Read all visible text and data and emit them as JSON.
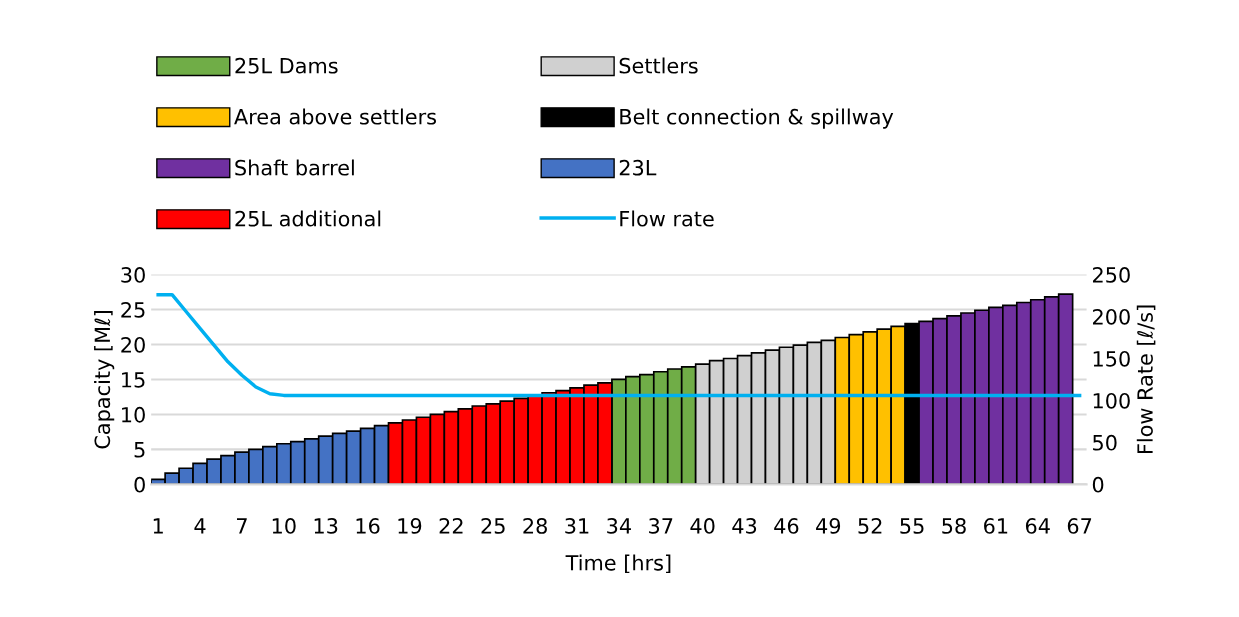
{
  "chart_data": {
    "type": "bar",
    "xlabel": "Time [hrs]",
    "ylabel": "Capacity [Mℓ]",
    "y2label": "Flow Rate [ℓ/s]",
    "categories": [
      "1",
      null,
      null,
      "4",
      null,
      null,
      "7",
      null,
      null,
      "10",
      null,
      null,
      "13",
      null,
      null,
      "16",
      null,
      null,
      "19",
      null,
      null,
      "22",
      null,
      null,
      "25",
      null,
      null,
      "28",
      null,
      null,
      "31",
      null,
      null,
      "34",
      null,
      null,
      "37",
      null,
      null,
      "40",
      null,
      null,
      "43",
      null,
      null,
      "46",
      null,
      null,
      "49",
      null,
      null,
      "52",
      null,
      null,
      "55",
      null,
      null,
      "58",
      null,
      null,
      "61",
      null,
      null,
      "64",
      null,
      null,
      "67"
    ],
    "series": [
      {
        "name": "25L Dams",
        "color": "#70ad47",
        "values": [
          null,
          null,
          null,
          null,
          null,
          null,
          null,
          null,
          null,
          null,
          null,
          null,
          null,
          null,
          null,
          null,
          null,
          null,
          null,
          null,
          null,
          null,
          null,
          null,
          null,
          null,
          null,
          null,
          null,
          null,
          null,
          null,
          null,
          15.0,
          15.4,
          15.7,
          16.1,
          16.5,
          16.8,
          null,
          null,
          null,
          null,
          null,
          null,
          null,
          null,
          null,
          null,
          null,
          null,
          null,
          null,
          null,
          null,
          null,
          null,
          null,
          null,
          null,
          null,
          null,
          null,
          null,
          null,
          null,
          null
        ]
      },
      {
        "name": "Settlers",
        "color": "#d0d0d0",
        "values": [
          null,
          null,
          null,
          null,
          null,
          null,
          null,
          null,
          null,
          null,
          null,
          null,
          null,
          null,
          null,
          null,
          null,
          null,
          null,
          null,
          null,
          null,
          null,
          null,
          null,
          null,
          null,
          null,
          null,
          null,
          null,
          null,
          null,
          null,
          null,
          null,
          null,
          null,
          null,
          17.2,
          17.7,
          18.0,
          18.4,
          18.8,
          19.2,
          19.6,
          19.9,
          20.3,
          20.6,
          null,
          null,
          null,
          null,
          null,
          null,
          null,
          null,
          null,
          null,
          null,
          null,
          null,
          null,
          null,
          null,
          null,
          null
        ]
      },
      {
        "name": "Area above settlers",
        "color": "#ffc000",
        "values": [
          null,
          null,
          null,
          null,
          null,
          null,
          null,
          null,
          null,
          null,
          null,
          null,
          null,
          null,
          null,
          null,
          null,
          null,
          null,
          null,
          null,
          null,
          null,
          null,
          null,
          null,
          null,
          null,
          null,
          null,
          null,
          null,
          null,
          null,
          null,
          null,
          null,
          null,
          null,
          null,
          null,
          null,
          null,
          null,
          null,
          null,
          null,
          null,
          null,
          21.0,
          21.4,
          21.8,
          22.2,
          22.6,
          null,
          null,
          null,
          null,
          null,
          null,
          null,
          null,
          null,
          null,
          null,
          null,
          null
        ]
      },
      {
        "name": "Belt connection & spillway",
        "color": "#000000",
        "values": [
          null,
          null,
          null,
          null,
          null,
          null,
          null,
          null,
          null,
          null,
          null,
          null,
          null,
          null,
          null,
          null,
          null,
          null,
          null,
          null,
          null,
          null,
          null,
          null,
          null,
          null,
          null,
          null,
          null,
          null,
          null,
          null,
          null,
          null,
          null,
          null,
          null,
          null,
          null,
          null,
          null,
          null,
          null,
          null,
          null,
          null,
          null,
          null,
          null,
          null,
          null,
          null,
          null,
          null,
          23.0,
          null,
          null,
          null,
          null,
          null,
          null,
          null,
          null,
          null,
          null,
          null,
          null
        ]
      },
      {
        "name": "Shaft barrel",
        "color": "#7030a0",
        "values": [
          null,
          null,
          null,
          null,
          null,
          null,
          null,
          null,
          null,
          null,
          null,
          null,
          null,
          null,
          null,
          null,
          null,
          null,
          null,
          null,
          null,
          null,
          null,
          null,
          null,
          null,
          null,
          null,
          null,
          null,
          null,
          null,
          null,
          null,
          null,
          null,
          null,
          null,
          null,
          null,
          null,
          null,
          null,
          null,
          null,
          null,
          null,
          null,
          null,
          null,
          null,
          null,
          null,
          null,
          null,
          23.3,
          23.7,
          24.1,
          24.5,
          24.9,
          25.3,
          25.6,
          26.0,
          26.4,
          26.8,
          27.2,
          null
        ]
      },
      {
        "name": "23L",
        "color": "#4472c4",
        "values": [
          0.7,
          1.6,
          2.3,
          3.0,
          3.6,
          4.1,
          4.6,
          5.0,
          5.4,
          5.8,
          6.1,
          6.5,
          6.9,
          7.3,
          7.6,
          8.0,
          8.4,
          null,
          null,
          null,
          null,
          null,
          null,
          null,
          null,
          null,
          null,
          null,
          null,
          null,
          null,
          null,
          null,
          null,
          null,
          null,
          null,
          null,
          null,
          null,
          null,
          null,
          null,
          null,
          null,
          null,
          null,
          null,
          null,
          null,
          null,
          null,
          null,
          null,
          null,
          null,
          null,
          null,
          null,
          null,
          null,
          null,
          null,
          null,
          null,
          null,
          null
        ]
      },
      {
        "name": "25L additional",
        "color": "#ff0000",
        "values": [
          null,
          null,
          null,
          null,
          null,
          null,
          null,
          null,
          null,
          null,
          null,
          null,
          null,
          null,
          null,
          null,
          null,
          8.8,
          9.2,
          9.6,
          10.0,
          10.4,
          10.8,
          11.2,
          11.5,
          11.9,
          12.3,
          12.7,
          13.1,
          13.4,
          13.8,
          14.2,
          14.5,
          null,
          null,
          null,
          null,
          null,
          null,
          null,
          null,
          null,
          null,
          null,
          null,
          null,
          null,
          null,
          null,
          null,
          null,
          null,
          null,
          null,
          null,
          null,
          null,
          null,
          null,
          null,
          null,
          null,
          null,
          null,
          null,
          null,
          null
        ]
      },
      {
        "name": "Flow rate",
        "type": "line",
        "axis": "y2",
        "color": "#00b0f0",
        "values": [
          226,
          226,
          206,
          186,
          166,
          146,
          130,
          116,
          108,
          106,
          106,
          106,
          106,
          106,
          106,
          106,
          106,
          106,
          106,
          106,
          106,
          106,
          106,
          106,
          106,
          106,
          106,
          106,
          106,
          106,
          106,
          106,
          106,
          106,
          106,
          106,
          106,
          106,
          106,
          106,
          106,
          106,
          106,
          106,
          106,
          106,
          106,
          106,
          106,
          106,
          106,
          106,
          106,
          106,
          106,
          106,
          106,
          106,
          106,
          106,
          106,
          106,
          106,
          106,
          106,
          106,
          106
        ]
      }
    ],
    "ylim": [
      0,
      30
    ],
    "yticks": [
      0,
      5,
      10,
      15,
      20,
      25,
      30
    ],
    "y2lim": [
      0,
      250
    ],
    "y2ticks": [
      0,
      50,
      100,
      150,
      200,
      250
    ],
    "grid": "y",
    "legend": "top",
    "marker": "none",
    "line_style": "solid"
  }
}
